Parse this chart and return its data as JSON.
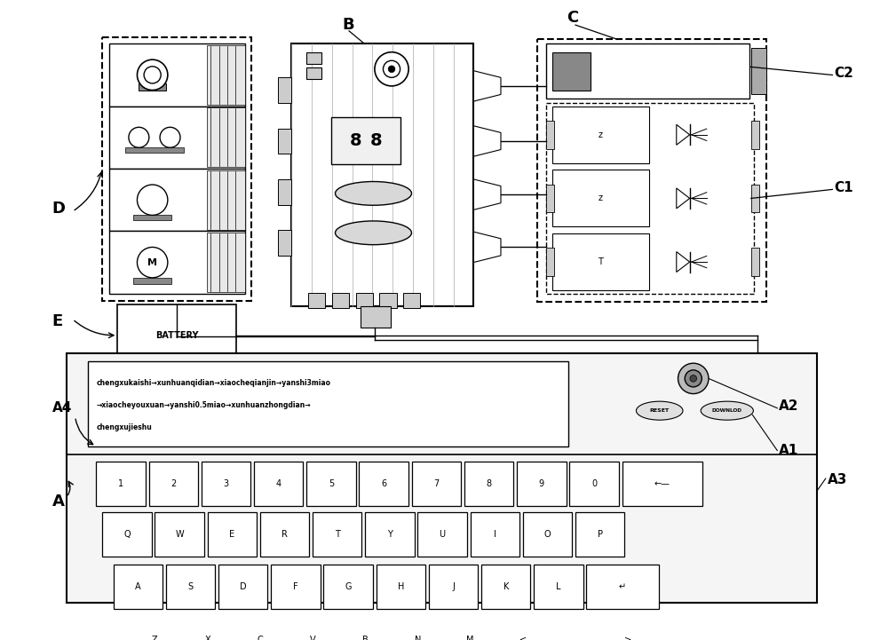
{
  "bg_color": "#ffffff",
  "screen_text_line1": "chengxukaishi→xunhuanqidian→xiaocheqianjin→yanshi3miao",
  "screen_text_line2": "→xiaocheyouxuan→yanshi0.5miao→xunhuanzhongdian→",
  "screen_text_line3": "chengxujieshu",
  "battery_text": "BATTERY",
  "reset_text": "RESET",
  "download_text": "DOWNLOD",
  "keyboard_row1": [
    "1",
    "2",
    "3",
    "4",
    "5",
    "6",
    "7",
    "8",
    "9",
    "0",
    "←—"
  ],
  "keyboard_row2": [
    "Q",
    "W",
    "E",
    "R",
    "T",
    "Y",
    "U",
    "I",
    "O",
    "P"
  ],
  "keyboard_row3": [
    "A",
    "S",
    "D",
    "F",
    "G",
    "H",
    "J",
    "K",
    "L",
    "↵"
  ],
  "keyboard_row4": [
    "Z",
    "X",
    "C",
    "V",
    "B",
    "N",
    "M",
    "<",
    ".",
    ">"
  ]
}
